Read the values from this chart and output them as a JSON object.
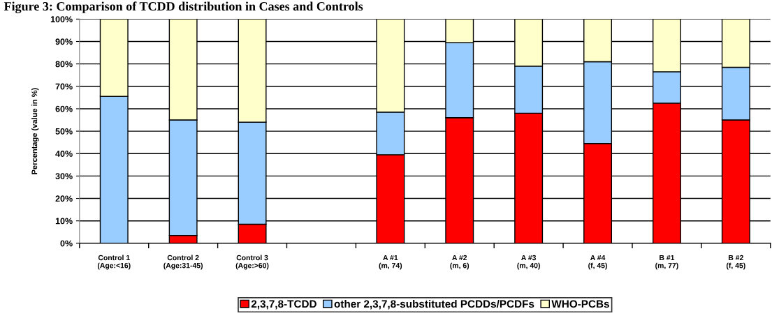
{
  "chart_data": {
    "type": "bar",
    "stacked": true,
    "title": "Figure 3: Comparison of TCDD distribution in Cases and Controls",
    "ylabel": "Percentage (value in %)",
    "categories": [
      "Control 1\n(Age:<16)",
      "Control 2\n(Age:31-45)",
      "Control 3\n(Age:>60)",
      null,
      "A #1\n(m, 74)",
      "A #2\n(m, 6)",
      "A #3\n(m, 40)",
      "A #4\n(f, 45)",
      "B #1\n(m, 77)",
      "B #2\n(f, 45)"
    ],
    "series": [
      {
        "name": "2,3,7,8-TCDD",
        "color": "#ff0000",
        "values": [
          0,
          3.5,
          8.5,
          null,
          39.5,
          56,
          58,
          44.5,
          62.5,
          55
        ]
      },
      {
        "name": "other 2,3,7,8-substituted PCDDs/PCDFs",
        "color": "#99ccff",
        "values": [
          65.5,
          51.5,
          45.5,
          null,
          19,
          33.5,
          21,
          36.5,
          14,
          23.5
        ]
      },
      {
        "name": "WHO-PCBs",
        "color": "#ffffcc",
        "values": [
          34.5,
          45,
          46,
          null,
          41.5,
          10.5,
          21,
          19,
          23.5,
          21.5
        ]
      }
    ],
    "ylim": [
      0,
      100
    ],
    "yticks": [
      {
        "value": 0,
        "label": "0%"
      },
      {
        "value": 10,
        "label": "10%"
      },
      {
        "value": 20,
        "label": "20%"
      },
      {
        "value": 30,
        "label": "30%"
      },
      {
        "value": 40,
        "label": "40%"
      },
      {
        "value": 50,
        "label": "50%"
      },
      {
        "value": 60,
        "label": "60%"
      },
      {
        "value": 70,
        "label": "70%"
      },
      {
        "value": 80,
        "label": "80%"
      },
      {
        "value": 90,
        "label": "90%"
      },
      {
        "value": 100,
        "label": "100%"
      }
    ],
    "grid": "y",
    "legend": "bottom"
  }
}
